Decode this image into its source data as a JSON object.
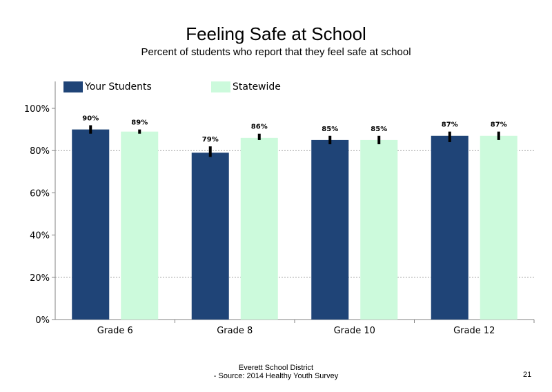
{
  "chart_data": {
    "type": "bar",
    "title": "Feeling Safe at School",
    "subtitle": "Percent of students  who report that they feel safe at school",
    "categories": [
      "Grade 6",
      "Grade 8",
      "Grade 10",
      "Grade 12"
    ],
    "series": [
      {
        "name": "Your Students",
        "color": "#1f4477",
        "values": [
          90,
          79,
          85,
          87
        ],
        "labels": [
          "90%",
          "79%",
          "85%",
          "87%"
        ],
        "error_low": [
          88,
          77,
          83,
          84
        ],
        "error_high": [
          92,
          82,
          87,
          89
        ]
      },
      {
        "name": "Statewide",
        "color": "#ccfadc",
        "values": [
          89,
          86,
          85,
          87
        ],
        "labels": [
          "89%",
          "86%",
          "85%",
          "87%"
        ],
        "error_low": [
          88,
          85,
          83,
          85
        ],
        "error_high": [
          90,
          88,
          87,
          89
        ]
      }
    ],
    "ylim": [
      0,
      110
    ],
    "yticks": [
      0,
      20,
      40,
      60,
      80,
      100
    ],
    "ytick_labels": [
      "0%",
      "20%",
      "40%",
      "60%",
      "80%",
      "100%"
    ],
    "gridlines": [
      20,
      80
    ],
    "legend_position": "top"
  },
  "footer": {
    "line1": "Everett School District",
    "line2": "- Source: 2014 Healthy  Youth Survey",
    "page_number": "21"
  }
}
